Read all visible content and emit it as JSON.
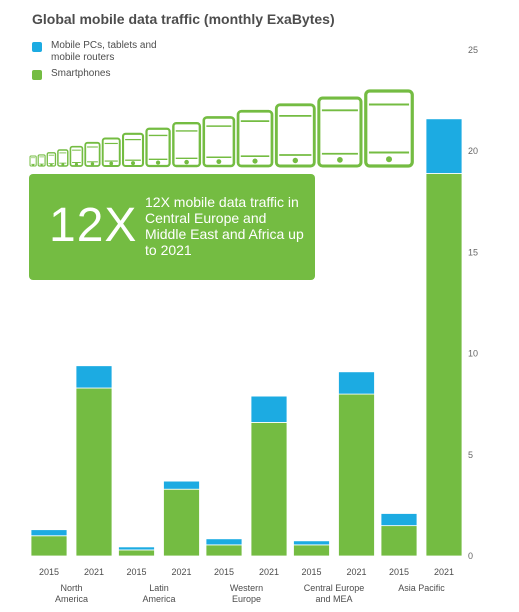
{
  "chart_data": {
    "type": "bar",
    "stacked": true,
    "title": "Global mobile data traffic (monthly ExaBytes)",
    "years": [
      "2015",
      "2021"
    ],
    "groups": [
      "North America",
      "Latin America",
      "Western Europe",
      "Central Europe and MEA",
      "Asia Pacific"
    ],
    "group_label_lines": [
      [
        "North",
        "America"
      ],
      [
        "Latin",
        "America"
      ],
      [
        "Western",
        "Europe"
      ],
      [
        "Central Europe",
        "and MEA"
      ],
      [
        "Asia Pacific"
      ]
    ],
    "series": [
      {
        "name": "Smartphones",
        "color": "#74bc42",
        "values": [
          [
            1.0,
            8.3
          ],
          [
            0.3,
            3.3
          ],
          [
            0.55,
            6.6
          ],
          [
            0.55,
            8.0
          ],
          [
            1.5,
            18.9
          ]
        ]
      },
      {
        "name": "Mobile PCs, tablets and mobile routers",
        "color": "#1cabe2",
        "values": [
          [
            0.3,
            1.1
          ],
          [
            0.15,
            0.4
          ],
          [
            0.3,
            1.3
          ],
          [
            0.2,
            1.1
          ],
          [
            0.6,
            2.7
          ]
        ]
      }
    ],
    "ylim": [
      0,
      25
    ],
    "yticks": [
      0,
      5,
      10,
      15,
      20,
      25
    ],
    "legend_position": "top-left",
    "grid": false
  },
  "legend": {
    "items": [
      {
        "label_lines": [
          "Mobile PCs, tablets and",
          "mobile routers"
        ],
        "color": "#1cabe2"
      },
      {
        "label_lines": [
          "Smartphones"
        ],
        "color": "#74bc42"
      }
    ]
  },
  "callout": {
    "big": "12X",
    "text": "12X mobile data traffic in Central Europe and Middle East and Africa up to 2021",
    "color": "#74bc42"
  },
  "device_icons": {
    "count": 15,
    "icon_name": "phone-icon",
    "color": "#74bc42"
  }
}
